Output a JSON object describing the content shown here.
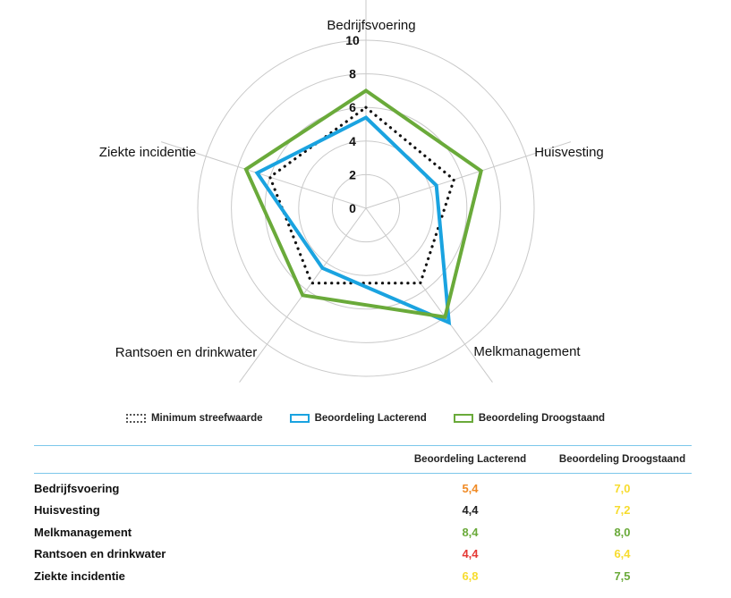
{
  "chart_data": {
    "type": "radar",
    "axes": [
      "Bedrijfsvoering",
      "Huisvesting",
      "Melkmanagement",
      "Rantsoen en drinkwater",
      "Ziekte incidentie"
    ],
    "rlim": [
      0,
      10
    ],
    "ticks": [
      "0",
      "2",
      "4",
      "6",
      "8",
      "10"
    ],
    "tick_values": [
      0,
      2,
      4,
      6,
      8,
      10
    ],
    "grid_values": [
      2,
      4,
      6,
      8,
      10
    ],
    "series": [
      {
        "name": "Minimum streefwaarde",
        "style": "dotted",
        "color": "#111111",
        "values": [
          6.0,
          5.5,
          5.5,
          5.5,
          6.0
        ]
      },
      {
        "name": "Beoordeling Lacterend",
        "style": "solid",
        "color": "#1aa3e0",
        "values": [
          5.4,
          4.4,
          8.4,
          4.4,
          6.8
        ]
      },
      {
        "name": "Beoordeling Droogstaand",
        "style": "solid",
        "color": "#6aaa3a",
        "values": [
          7.0,
          7.2,
          8.0,
          6.4,
          7.5
        ]
      }
    ]
  },
  "legend": {
    "items": [
      {
        "label": "Minimum streefwaarde"
      },
      {
        "label": "Beoordeling Lacterend"
      },
      {
        "label": "Beoordeling Droogstaand"
      }
    ]
  },
  "table": {
    "headers": {
      "name": "",
      "lacterend": "Beoordeling Lacterend",
      "droogstaand": "Beoordeling Droogstaand"
    },
    "rows": [
      {
        "name": "Bedrijfsvoering",
        "lacterend": "5,4",
        "lac_color": "#f08a24",
        "droogstaand": "7,0",
        "dro_color": "#f7dc2e"
      },
      {
        "name": "Huisvesting",
        "lacterend": "4,4",
        "lac_color": "#222222",
        "droogstaand": "7,2",
        "dro_color": "#f7dc2e"
      },
      {
        "name": "Melkmanagement",
        "lacterend": "8,4",
        "lac_color": "#6aaa3a",
        "droogstaand": "8,0",
        "dro_color": "#6aaa3a"
      },
      {
        "name": "Rantsoen en drinkwater",
        "lacterend": "4,4",
        "lac_color": "#e53935",
        "droogstaand": "6,4",
        "dro_color": "#f7dc2e"
      },
      {
        "name": "Ziekte incidentie",
        "lacterend": "6,8",
        "lac_color": "#f7dc2e",
        "droogstaand": "7,5",
        "dro_color": "#6aaa3a"
      }
    ]
  }
}
